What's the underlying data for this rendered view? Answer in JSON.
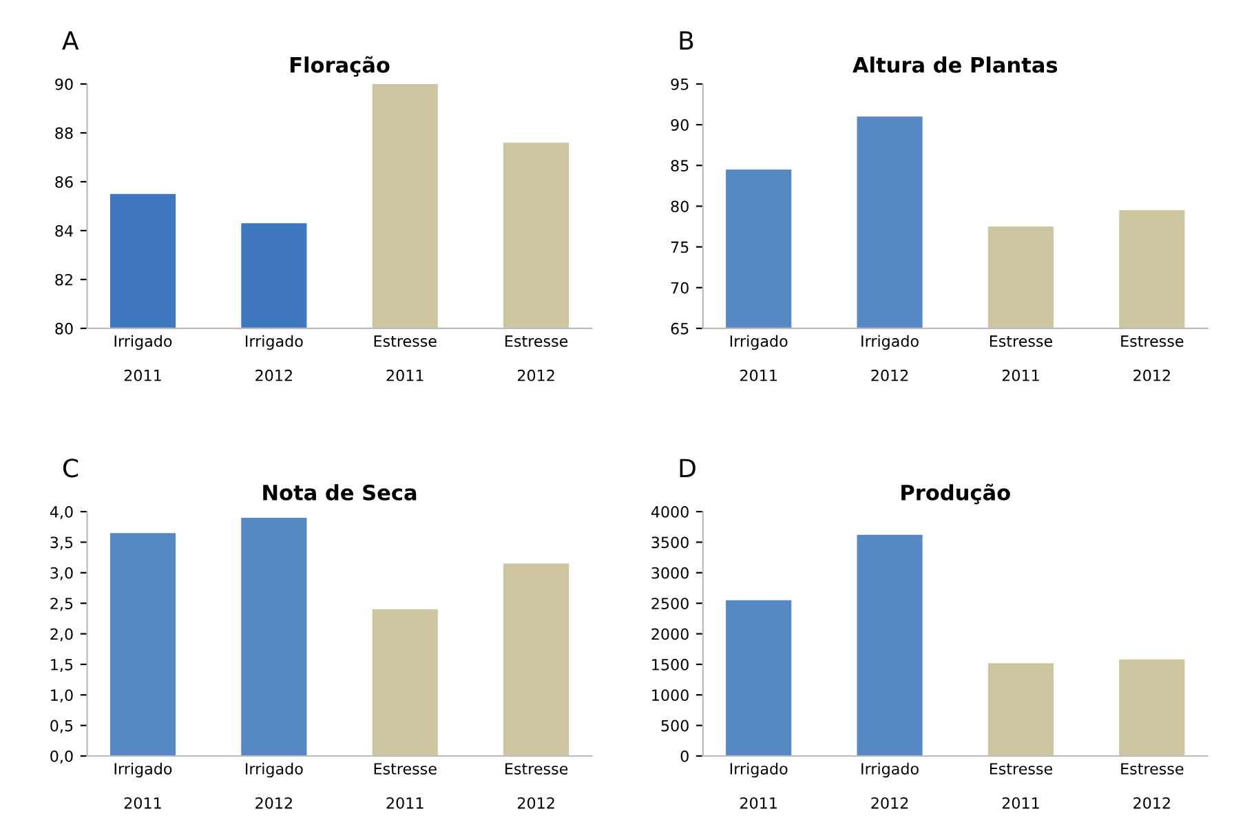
{
  "chart_data": [
    {
      "type": "bar",
      "title": "Floração",
      "annotations": [
        "A"
      ],
      "categories": [
        "Irrigado\n\n2011",
        "Irrigado\n\n2012",
        "Estresse\n\n2011",
        "Estresse\n\n2012"
      ],
      "values": [
        85.5,
        84.3,
        90,
        87.6
      ],
      "colors": [
        "#3f78c0",
        "#3f78c0",
        "#cdc4a0",
        "#cdc4a0"
      ],
      "ylim": [
        80,
        90
      ],
      "yticks": [
        80,
        82,
        84,
        86,
        88,
        90
      ],
      "grid": false,
      "legend": false
    },
    {
      "type": "bar",
      "title": "Altura de Plantas",
      "annotations": [
        "B"
      ],
      "categories": [
        "Irrigado\n\n2011",
        "Irrigado\n\n2012",
        "Estresse\n\n2011",
        "Estresse\n\n2012"
      ],
      "values": [
        84.5,
        91,
        77.5,
        79.5
      ],
      "colors": [
        "#5689c4",
        "#5689c4",
        "#cdc4a0",
        "#cdc4a0"
      ],
      "ylim": [
        65,
        95
      ],
      "yticks": [
        65,
        70,
        75,
        80,
        85,
        90,
        95
      ],
      "grid": false,
      "legend": false
    },
    {
      "type": "bar",
      "title": "Nota de Seca",
      "annotations": [
        "C"
      ],
      "categories": [
        "Irrigado\n\n2011",
        "Irrigado\n\n2012",
        "Estresse\n\n2011",
        "Estresse\n\n2012"
      ],
      "values": [
        3.65,
        3.9,
        2.4,
        3.15
      ],
      "colors": [
        "#5689c4",
        "#5689c4",
        "#cdc4a0",
        "#cdc4a0"
      ],
      "ylim": [
        0,
        4
      ],
      "yticks": [
        {
          "value": 0,
          "label": "0,0"
        },
        {
          "value": 0.5,
          "label": "0,5"
        },
        {
          "value": 1,
          "label": "1,0"
        },
        {
          "value": 1.5,
          "label": "1,5"
        },
        {
          "value": 2,
          "label": "2,0"
        },
        {
          "value": 2.5,
          "label": "2,5"
        },
        {
          "value": 3,
          "label": "3,0"
        },
        {
          "value": 3.5,
          "label": "3,5"
        },
        {
          "value": 4,
          "label": "4,0"
        }
      ],
      "grid": false,
      "legend": false
    },
    {
      "type": "bar",
      "title": "Produção",
      "annotations": [
        "D"
      ],
      "categories": [
        "Irrigado\n\n2011",
        "Irrigado\n\n2012",
        "Estresse\n\n2011",
        "Estresse\n\n2012"
      ],
      "values": [
        2550,
        3620,
        1520,
        1580
      ],
      "colors": [
        "#5689c4",
        "#5689c4",
        "#cdc4a0",
        "#cdc4a0"
      ],
      "ylim": [
        0,
        4000
      ],
      "yticks": [
        0,
        500,
        1000,
        1500,
        2000,
        2500,
        3000,
        3500,
        4000
      ],
      "grid": false,
      "legend": false
    }
  ]
}
